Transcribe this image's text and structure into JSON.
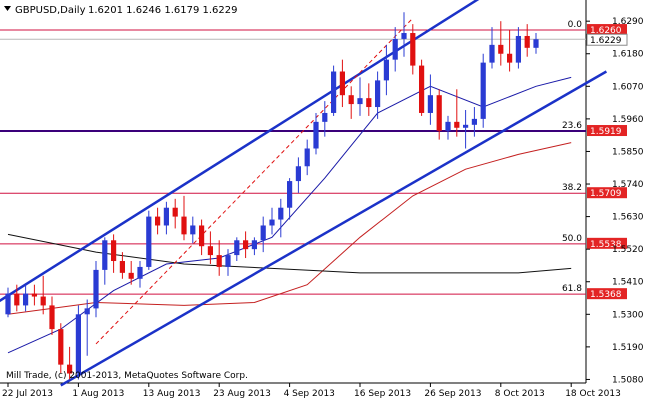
{
  "header": {
    "symbol": "GBPUSD,Daily",
    "ohlc": "1.6201 1.6246 1.6179 1.6229"
  },
  "footer": {
    "copyright": "Mill Trade, (c) 2001-2013, MetaQuotes Software Corp."
  },
  "colors": {
    "bull": "#2a3bd3",
    "bear": "#e01010",
    "channel": "#1b32c8",
    "fib_line": "#d01040",
    "level_236": "#3a007a",
    "ma_fast": "#1a1aa8",
    "ma_mid": "#c42020",
    "ma_slow": "#111111",
    "price_tag": "#e32424"
  },
  "chart_data": {
    "type": "candlestick",
    "symbol": "GBPUSD",
    "timeframe": "Daily",
    "ylim": [
      1.5068,
      1.6348
    ],
    "y_ticks": [
      1.629,
      1.618,
      1.607,
      1.596,
      1.585,
      1.574,
      1.563,
      1.552,
      1.541,
      1.53,
      1.519,
      1.508
    ],
    "x_ticks": [
      {
        "label": "22 Jul 2013",
        "bar": 0
      },
      {
        "label": "1 Aug 2013",
        "bar": 8
      },
      {
        "label": "13 Aug 2013",
        "bar": 16
      },
      {
        "label": "23 Aug 2013",
        "bar": 24
      },
      {
        "label": "4 Sep 2013",
        "bar": 32
      },
      {
        "label": "16 Sep 2013",
        "bar": 40
      },
      {
        "label": "26 Sep 2013",
        "bar": 48
      },
      {
        "label": "8 Oct 2013",
        "bar": 56
      },
      {
        "label": "18 Oct 2013",
        "bar": 64
      }
    ],
    "candles": [
      [
        1.53,
        1.539,
        1.529,
        1.537
      ],
      [
        1.537,
        1.54,
        1.531,
        1.533
      ],
      [
        1.533,
        1.54,
        1.531,
        1.537
      ],
      [
        1.537,
        1.54,
        1.533,
        1.536
      ],
      [
        1.536,
        1.543,
        1.53,
        1.533
      ],
      [
        1.533,
        1.536,
        1.523,
        1.525
      ],
      [
        1.525,
        1.527,
        1.51,
        1.513
      ],
      [
        1.513,
        1.519,
        1.508,
        1.51
      ],
      [
        1.51,
        1.533,
        1.508,
        1.53
      ],
      [
        1.53,
        1.535,
        1.516,
        1.532
      ],
      [
        1.532,
        1.548,
        1.529,
        1.545
      ],
      [
        1.545,
        1.556,
        1.54,
        1.555
      ],
      [
        1.555,
        1.557,
        1.544,
        1.548
      ],
      [
        1.548,
        1.551,
        1.542,
        1.544
      ],
      [
        1.544,
        1.548,
        1.54,
        1.542
      ],
      [
        1.542,
        1.548,
        1.539,
        1.546
      ],
      [
        1.546,
        1.565,
        1.545,
        1.563
      ],
      [
        1.563,
        1.566,
        1.557,
        1.56
      ],
      [
        1.56,
        1.568,
        1.557,
        1.566
      ],
      [
        1.566,
        1.569,
        1.559,
        1.563
      ],
      [
        1.563,
        1.57,
        1.555,
        1.557
      ],
      [
        1.557,
        1.563,
        1.554,
        1.56
      ],
      [
        1.56,
        1.562,
        1.55,
        1.553
      ],
      [
        1.553,
        1.558,
        1.547,
        1.55
      ],
      [
        1.55,
        1.555,
        1.543,
        1.546
      ],
      [
        1.546,
        1.552,
        1.543,
        1.55
      ],
      [
        1.55,
        1.556,
        1.548,
        1.555
      ],
      [
        1.555,
        1.558,
        1.549,
        1.552
      ],
      [
        1.552,
        1.556,
        1.55,
        1.555
      ],
      [
        1.555,
        1.563,
        1.551,
        1.56
      ],
      [
        1.56,
        1.566,
        1.557,
        1.562
      ],
      [
        1.562,
        1.569,
        1.556,
        1.566
      ],
      [
        1.566,
        1.576,
        1.562,
        1.575
      ],
      [
        1.575,
        1.583,
        1.571,
        1.58
      ],
      [
        1.58,
        1.589,
        1.577,
        1.586
      ],
      [
        1.586,
        1.598,
        1.584,
        1.595
      ],
      [
        1.595,
        1.602,
        1.59,
        1.598
      ],
      [
        1.598,
        1.614,
        1.597,
        1.612
      ],
      [
        1.612,
        1.616,
        1.6,
        1.604
      ],
      [
        1.604,
        1.607,
        1.596,
        1.601
      ],
      [
        1.601,
        1.61,
        1.597,
        1.603
      ],
      [
        1.603,
        1.608,
        1.597,
        1.6
      ],
      [
        1.6,
        1.612,
        1.596,
        1.609
      ],
      [
        1.609,
        1.621,
        1.604,
        1.616
      ],
      [
        1.616,
        1.627,
        1.612,
        1.623
      ],
      [
        1.623,
        1.632,
        1.617,
        1.625
      ],
      [
        1.625,
        1.628,
        1.611,
        1.614
      ],
      [
        1.614,
        1.616,
        1.597,
        1.598
      ],
      [
        1.598,
        1.611,
        1.594,
        1.604
      ],
      [
        1.604,
        1.606,
        1.589,
        1.592
      ],
      [
        1.592,
        1.597,
        1.589,
        1.595
      ],
      [
        1.595,
        1.606,
        1.59,
        1.593
      ],
      [
        1.593,
        1.599,
        1.586,
        1.594
      ],
      [
        1.594,
        1.6,
        1.59,
        1.596
      ],
      [
        1.596,
        1.618,
        1.593,
        1.615
      ],
      [
        1.615,
        1.627,
        1.613,
        1.621
      ],
      [
        1.621,
        1.629,
        1.614,
        1.618
      ],
      [
        1.618,
        1.626,
        1.612,
        1.615
      ],
      [
        1.615,
        1.627,
        1.613,
        1.624
      ],
      [
        1.624,
        1.628,
        1.617,
        1.62
      ],
      [
        1.62,
        1.625,
        1.618,
        1.6229
      ]
    ],
    "lines": [
      {
        "name": "upper channel",
        "from": [
          -1.5,
          1.5335
        ],
        "to": [
          54,
          1.6375
        ]
      },
      {
        "name": "lower channel",
        "from": [
          6,
          1.506
        ],
        "to": [
          68,
          1.612
        ]
      },
      {
        "name": "channel midline (dashed)",
        "from": [
          10,
          1.52
        ],
        "to": [
          46,
          1.63
        ]
      }
    ],
    "fib_levels": [
      {
        "label": "0.0",
        "value": 1.626
      },
      {
        "label": "23.6",
        "value": 1.5919
      },
      {
        "label": "38.2",
        "value": 1.5709
      },
      {
        "label": "50.0",
        "value": 1.5538
      },
      {
        "label": "61.8",
        "value": 1.5368
      }
    ],
    "current_price": 1.6229,
    "moving_averages": [
      {
        "id": "fast",
        "points": [
          [
            0,
            1.517
          ],
          [
            6,
            1.525
          ],
          [
            12,
            1.538
          ],
          [
            18,
            1.547
          ],
          [
            24,
            1.549
          ],
          [
            30,
            1.556
          ],
          [
            36,
            1.576
          ],
          [
            42,
            1.598
          ],
          [
            48,
            1.607
          ],
          [
            54,
            1.6
          ],
          [
            60,
            1.607
          ],
          [
            64,
            1.61
          ]
        ]
      },
      {
        "id": "mid",
        "points": [
          [
            0,
            1.53
          ],
          [
            10,
            1.534
          ],
          [
            20,
            1.533
          ],
          [
            28,
            1.534
          ],
          [
            34,
            1.54
          ],
          [
            40,
            1.556
          ],
          [
            46,
            1.57
          ],
          [
            52,
            1.579
          ],
          [
            58,
            1.584
          ],
          [
            64,
            1.588
          ]
        ]
      },
      {
        "id": "slow",
        "points": [
          [
            0,
            1.557
          ],
          [
            10,
            1.551
          ],
          [
            20,
            1.547
          ],
          [
            30,
            1.5455
          ],
          [
            40,
            1.544
          ],
          [
            50,
            1.544
          ],
          [
            58,
            1.544
          ],
          [
            64,
            1.5455
          ]
        ]
      }
    ]
  }
}
